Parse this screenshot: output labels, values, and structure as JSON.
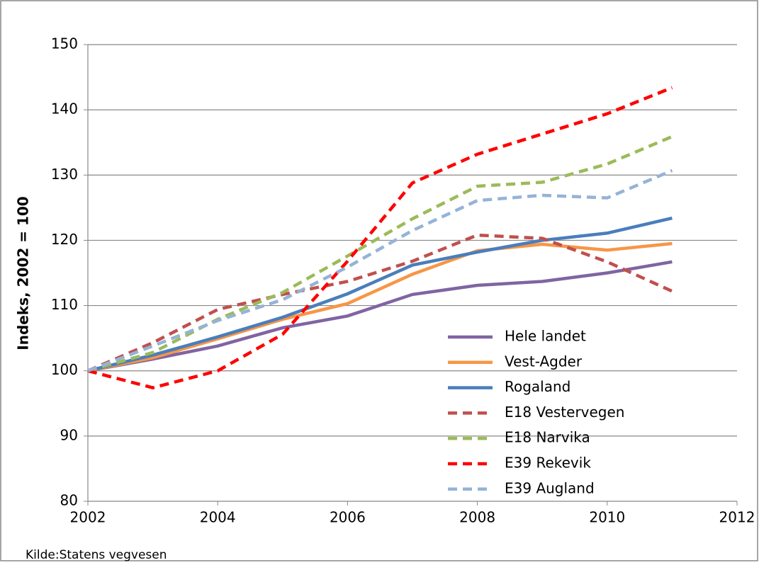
{
  "chart_data": {
    "type": "line",
    "y_label": "Indeks, 2002 = 100",
    "source": "Kilde:Statens vegvesen",
    "x": [
      2002,
      2003,
      2004,
      2005,
      2006,
      2007,
      2008,
      2009,
      2010,
      2011
    ],
    "xlim": [
      2002,
      2012
    ],
    "xticks": [
      2002,
      2004,
      2006,
      2008,
      2010,
      2012
    ],
    "ylim": [
      80,
      150
    ],
    "yticks": [
      80,
      90,
      100,
      110,
      120,
      130,
      140,
      150
    ],
    "grid": true,
    "legend": "inside-right",
    "series": [
      {
        "name": "Hele landet",
        "color": "#8064a2",
        "dashed": false,
        "values": [
          100,
          101.8,
          103.8,
          106.6,
          108.4,
          111.7,
          113.1,
          113.7,
          115.0,
          116.7
        ]
      },
      {
        "name": "Vest-Agder",
        "color": "#f79646",
        "dashed": false,
        "values": [
          100,
          102.0,
          104.9,
          107.9,
          110.3,
          114.8,
          118.4,
          119.4,
          118.5,
          119.5
        ]
      },
      {
        "name": "Rogaland",
        "color": "#4a7ebb",
        "dashed": false,
        "values": [
          100,
          102.4,
          105.2,
          108.2,
          111.8,
          116.2,
          118.2,
          120.0,
          121.1,
          123.4
        ]
      },
      {
        "name": "E18 Vestervegen",
        "color": "#c0504d",
        "dashed": true,
        "values": [
          100,
          104.3,
          109.4,
          111.7,
          113.7,
          116.8,
          120.8,
          120.3,
          116.7,
          112.2
        ]
      },
      {
        "name": "E18 Narvika",
        "color": "#9bbb59",
        "dashed": true,
        "values": [
          100,
          102.8,
          107.9,
          112.0,
          117.6,
          123.3,
          128.3,
          128.9,
          131.7,
          135.9
        ]
      },
      {
        "name": "E39 Rekevik",
        "color": "#ff0000",
        "dashed": true,
        "values": [
          100,
          97.4,
          100.0,
          105.6,
          116.8,
          128.8,
          133.2,
          136.3,
          139.4,
          143.4
        ]
      },
      {
        "name": "E39 Augland",
        "color": "#95b3d7",
        "dashed": true,
        "values": [
          100,
          103.8,
          107.7,
          110.9,
          115.9,
          121.5,
          126.1,
          126.9,
          126.5,
          130.7
        ]
      }
    ]
  }
}
